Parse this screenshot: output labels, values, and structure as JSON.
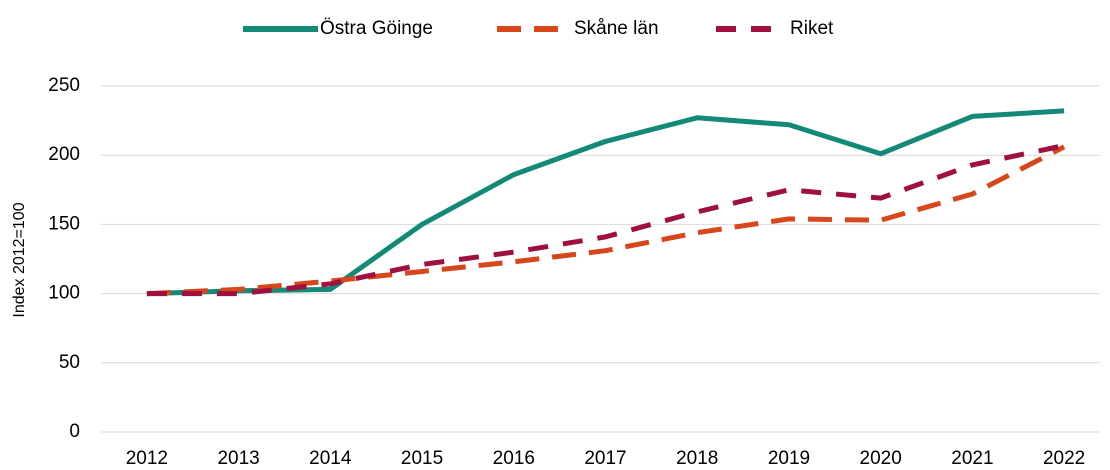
{
  "chart_data": {
    "type": "line",
    "y_label": "Index 2012=100",
    "categories": [
      "2012",
      "2013",
      "2014",
      "2015",
      "2016",
      "2017",
      "2018",
      "2019",
      "2020",
      "2021",
      "2022"
    ],
    "series": [
      {
        "name": "Östra Göinge",
        "color": "#138a77",
        "dash": "solid",
        "values": [
          100,
          102,
          103,
          150,
          186,
          210,
          227,
          222,
          201,
          228,
          232
        ]
      },
      {
        "name": "Skåne län",
        "color": "#d8461b",
        "dash": "dashed",
        "values": [
          100,
          103,
          109,
          116,
          123,
          131,
          144,
          154,
          153,
          172,
          206
        ]
      },
      {
        "name": "Riket",
        "color": "#a0103f",
        "dash": "dashed",
        "values": [
          100,
          100,
          107,
          121,
          130,
          141,
          159,
          175,
          169,
          193,
          207
        ]
      }
    ],
    "ylim": [
      0,
      250
    ],
    "yticks": [
      0,
      50,
      100,
      150,
      200,
      250
    ],
    "grid": true,
    "legend": "top"
  }
}
